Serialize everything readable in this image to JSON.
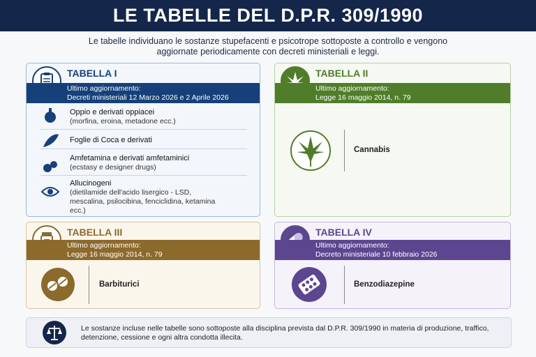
{
  "header": {
    "title": "LE TABELLE DEL D.P.R. 309/1990",
    "subtitle": "Le tabelle individuano le sostanze stupefacenti e psicotrope sottoposte a controllo e vengono aggiornate periodicamente con decreti ministeriali e leggi."
  },
  "tables": [
    {
      "title": "TABELLA I",
      "update_label": "Ultimo aggiornamento:",
      "update": "Decreti ministeriali 12 Marzo 2026 e 2 Aprile 2026",
      "items": [
        {
          "name": "Oppio e derivati oppiacei",
          "detail": "(morfina, eroina, metadone ecc.)"
        },
        {
          "name": "Foglie di Coca e derivati"
        },
        {
          "name": "Amfetamina e derivati amfetaminici",
          "detail": "(ecstasy e designer drugs)"
        },
        {
          "name": "Allucinogeni",
          "detail": "(dietilamide dell'acido lisergico - LSD, mescalina, psilocibina, fenciclidina, ketamina ecc.)"
        }
      ]
    },
    {
      "title": "TABELLA II",
      "update_label": "Ultimo aggiornamento:",
      "update": "Legge 16 maggio 2014, n. 79",
      "items": [
        {
          "name": "Cannabis"
        }
      ]
    },
    {
      "title": "TABELLA III",
      "update_label": "Ultimo aggiornamento:",
      "update": "Legge 16 maggio 2014, n. 79",
      "items": [
        {
          "name": "Barbiturici"
        }
      ]
    },
    {
      "title": "TABELLA IV",
      "update_label": "Ultimo aggiornamento:",
      "update": "Decreto ministeriale 10 febbraio 2026",
      "items": [
        {
          "name": "Benzodiazepine"
        }
      ]
    }
  ],
  "footer": "Le sostanze incluse nelle tabelle sono sottoposte alla disciplina prevista dal D.P.R. 309/1990 in materia di produzione, traffico, detenzione, cessione e ogni altra condotta illecita."
}
